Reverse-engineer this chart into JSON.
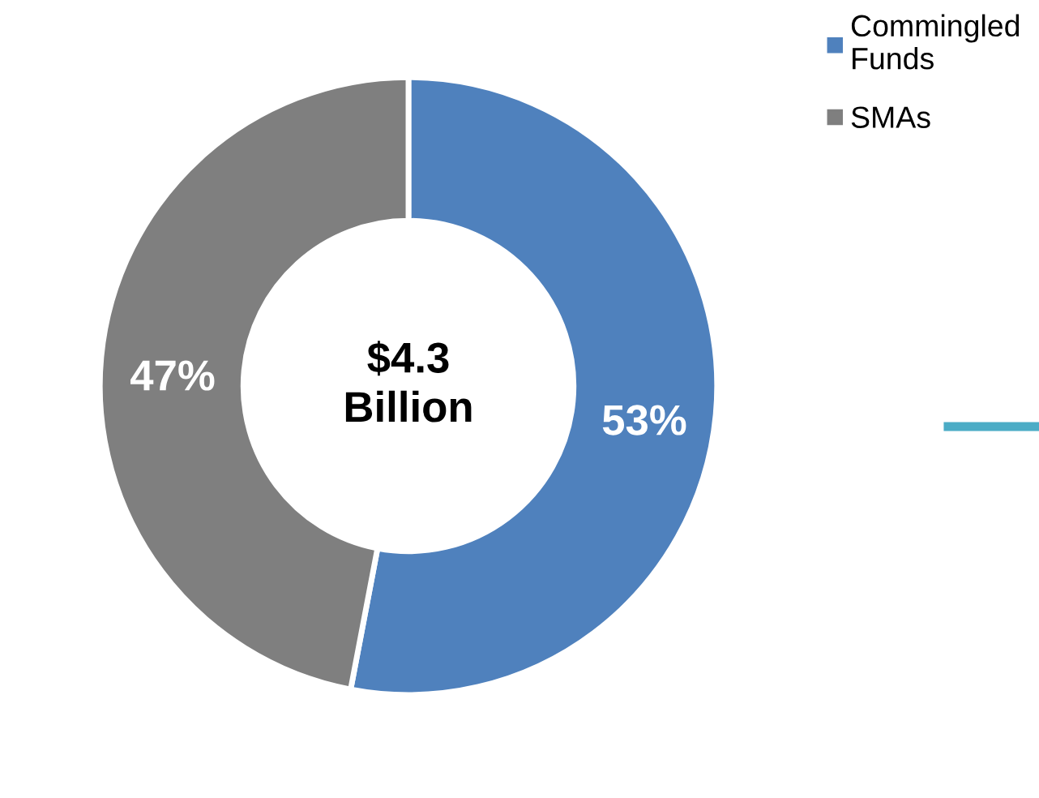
{
  "chart_data": {
    "type": "donut",
    "categories": [
      "Commingled Funds",
      "SMAs"
    ],
    "values": [
      53,
      47
    ],
    "colors": [
      "#4f81bd",
      "#7f7f7f"
    ],
    "value_labels": [
      "53%",
      "47%"
    ],
    "annotations": [
      "$4.3\nBillion"
    ],
    "legend": "top right"
  }
}
